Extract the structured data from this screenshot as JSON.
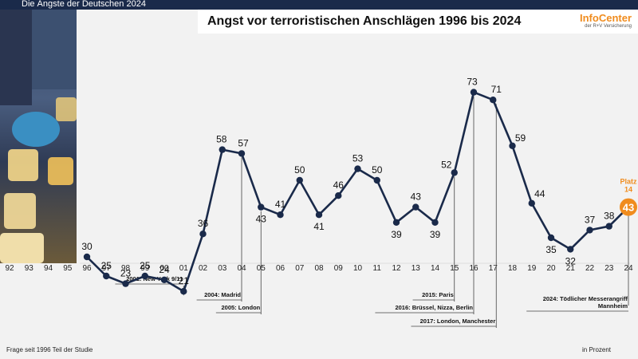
{
  "header": {
    "banner": "Die Ängste der Deutschen 2024",
    "title": "Angst vor terroristischen Anschlägen 1996 bis 2024",
    "logo_main": "InfoCenter",
    "logo_sub": "der R+V Versicherung"
  },
  "footer": {
    "left": "Frage seit 1996 Teil der Studie",
    "right": "in Prozent"
  },
  "colors": {
    "line": "#1a2a4a",
    "accent": "#f08c1e"
  },
  "chart_data": {
    "type": "line",
    "title": "Angst vor terroristischen Anschlägen 1996 bis 2024",
    "xlabel": "",
    "ylabel": "in Prozent",
    "tick_labels": [
      "92",
      "93",
      "94",
      "95",
      "96",
      "97",
      "98",
      "99",
      "00",
      "01",
      "02",
      "03",
      "04",
      "05",
      "06",
      "07",
      "08",
      "09",
      "10",
      "11",
      "12",
      "13",
      "14",
      "15",
      "16",
      "17",
      "18",
      "19",
      "20",
      "21",
      "22",
      "23",
      "24"
    ],
    "series": [
      {
        "name": "Angst vor terroristischen Anschlägen",
        "x": [
          "96",
          "97",
          "98",
          "99",
          "00",
          "01",
          "02",
          "03",
          "04",
          "05",
          "06",
          "07",
          "08",
          "09",
          "10",
          "11",
          "12",
          "13",
          "14",
          "15",
          "16",
          "17",
          "18",
          "19",
          "20",
          "21",
          "22",
          "23",
          "24"
        ],
        "values": [
          30,
          25,
          23,
          25,
          24,
          21,
          36,
          58,
          57,
          43,
          41,
          50,
          41,
          46,
          53,
          50,
          39,
          43,
          39,
          52,
          73,
          71,
          59,
          44,
          35,
          32,
          37,
          38,
          43
        ]
      }
    ],
    "highlight": {
      "x": "24",
      "value": 43,
      "label_line1": "Platz",
      "label_line2": "14"
    },
    "annotations": [
      {
        "x": "01",
        "text": "2001: New York 9/11"
      },
      {
        "x": "04",
        "text": "2004: Madrid"
      },
      {
        "x": "05",
        "text": "2005: London"
      },
      {
        "x": "15",
        "text": "2015: Paris"
      },
      {
        "x": "16",
        "text": "2016: Brüssel, Nizza, Berlin"
      },
      {
        "x": "17",
        "text": "2017: London, Manchester"
      },
      {
        "x": "24",
        "text": "2024: Tödlicher Messerangriff",
        "text2": "Mannheim"
      }
    ]
  }
}
